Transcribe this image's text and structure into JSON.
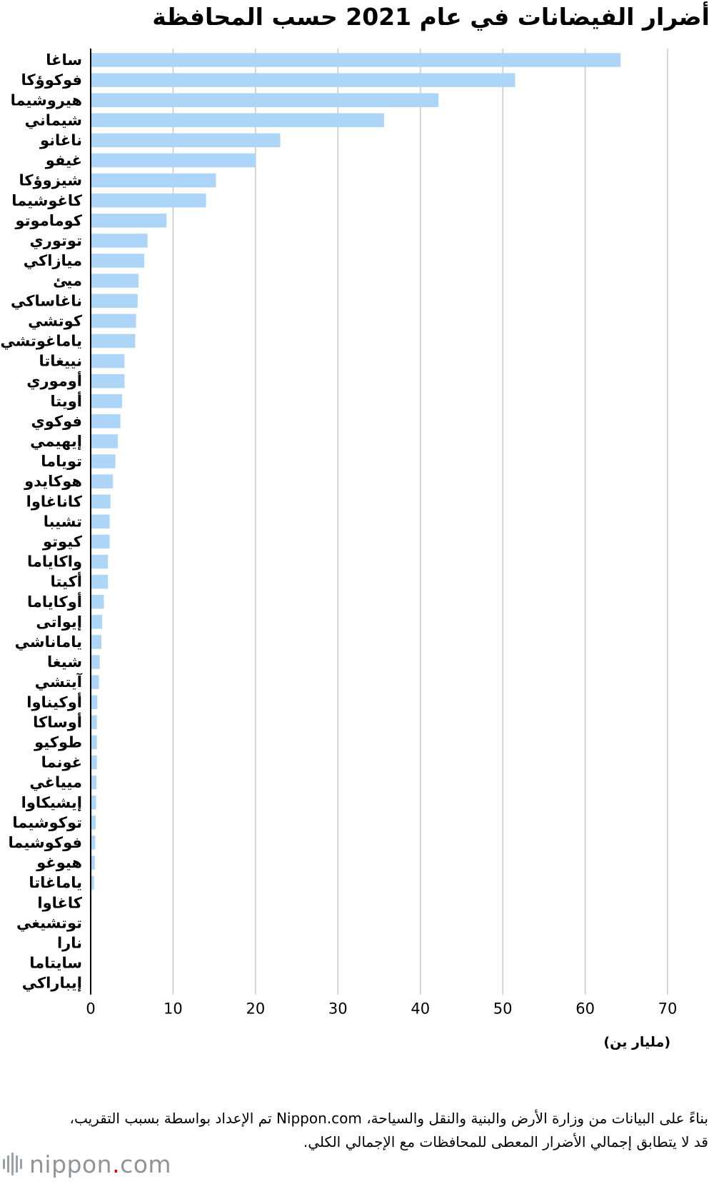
{
  "chart_data": {
    "type": "bar",
    "orientation": "horizontal",
    "title": "أضرار الفيضانات في عام 2021 حسب المحافظة",
    "xlabel": "(مليار ين)",
    "xlim": [
      0,
      70
    ],
    "xticks": [
      0,
      10,
      20,
      30,
      40,
      50,
      60,
      70
    ],
    "grid": "vertical",
    "bar_color": "#add5f7",
    "categories": [
      "ساغا",
      "فوكوؤكا",
      "هيروشيما",
      "شيماني",
      "ناغانو",
      "غيفو",
      "شيزوؤكا",
      "كاغوشيما",
      "كوماموتو",
      "توتوري",
      "ميازاكي",
      "ميئ",
      "ناغاساكي",
      "كوتشي",
      "ياماغوتشي",
      "نييغاتا",
      "أوموري",
      "أويتا",
      "فوكوي",
      "إيهيمي",
      "توياما",
      "هوكايدو",
      "كاناغاوا",
      "تشيبا",
      "كيوتو",
      "واكاياما",
      "أكيتا",
      "أوكاياما",
      "إيواتى",
      "ياماناشي",
      "شيغا",
      "آيتشي",
      "أوكيناوا",
      "أوساكا",
      "طوكيو",
      "غونما",
      "ميياغي",
      "إيشيكاوا",
      "توكوشيما",
      "فوكوشيما",
      "هيوغو",
      "ياماغاتا",
      "كاغاوا",
      "توتشيغي",
      "نارا",
      "سايتاما",
      "إيباراكي"
    ],
    "values": [
      64.3,
      51.5,
      42.2,
      35.6,
      23.0,
      20.0,
      15.2,
      14.0,
      9.2,
      6.9,
      6.5,
      5.8,
      5.7,
      5.5,
      5.4,
      4.1,
      4.1,
      3.8,
      3.6,
      3.3,
      3.0,
      2.7,
      2.4,
      2.3,
      2.3,
      2.1,
      2.1,
      1.6,
      1.4,
      1.3,
      1.1,
      1.0,
      0.8,
      0.75,
      0.75,
      0.75,
      0.7,
      0.65,
      0.6,
      0.55,
      0.5,
      0.4,
      0.1,
      0.05,
      0.0,
      0.0,
      0.0
    ]
  },
  "footnote": "بناءً على البيانات من وزارة الأرض والبنية والنقل والسياحة، Nippon.com تم الإعداد بواسطة بسبب التقريب، قد لا يتطابق إجمالي الأضرار المعطى للمحافظات مع الإجمالي الكلي.",
  "brand": {
    "name_main": "nippon",
    "name_dot": ".",
    "name_tld": "com"
  }
}
